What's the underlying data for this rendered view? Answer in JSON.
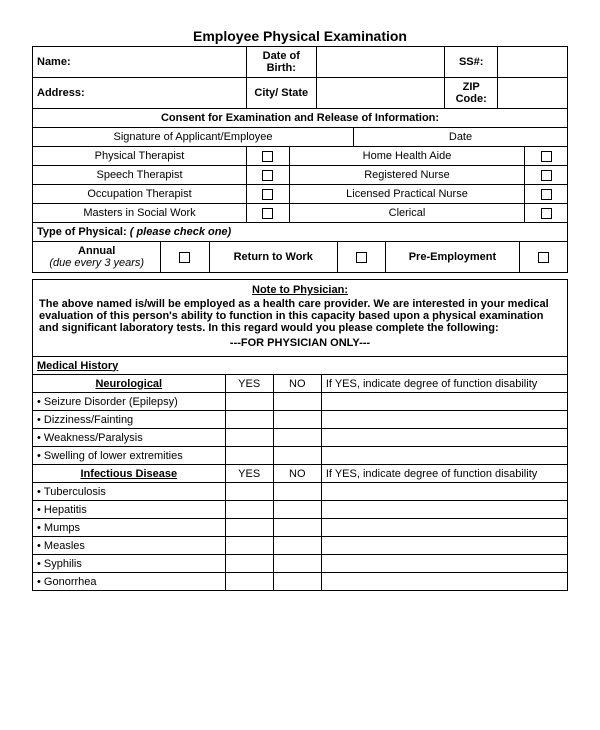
{
  "title": "Employee Physical Examination",
  "info": {
    "name_label": "Name:",
    "dob_label": "Date of Birth:",
    "ss_label": "SS#:",
    "address_label": "Address:",
    "city_state_label": "City/ State",
    "zip_label": "ZIP Code:"
  },
  "consent": {
    "heading": "Consent for Examination and Release of Information:",
    "sig_label": "Signature of Applicant/Employee",
    "date_label": "Date"
  },
  "roles": {
    "left": [
      "Physical Therapist",
      "Speech Therapist",
      "Occupation Therapist",
      "Masters in Social Work"
    ],
    "right": [
      "Home Health Aide",
      "Registered Nurse",
      "Licensed Practical Nurse",
      "Clerical"
    ]
  },
  "physical_type": {
    "heading": "Type of Physical:",
    "heading_note": "( please check one)",
    "options": [
      {
        "label": "Annual",
        "sub": "(due every 3 years)"
      },
      {
        "label": "Return to Work",
        "sub": ""
      },
      {
        "label": "Pre-Employment",
        "sub": ""
      }
    ]
  },
  "note": {
    "title": "Note to Physician:",
    "body": "The above named is/will be employed as a health care provider. We are interested in your medical evaluation of this person's ability to function in this capacity based upon a physical examination and significant laboratory tests. In this regard would you please complete the following:",
    "physician_only": "---FOR PHYSICIAN ONLY---"
  },
  "medical": {
    "history_heading": "Medical History",
    "yes": "YES",
    "no": "NO",
    "if_yes": "If YES, indicate degree of function disability",
    "sections": [
      {
        "heading": "Neurological",
        "items": [
          "Seizure Disorder (Epilepsy)",
          "Dizziness/Fainting",
          "Weakness/Paralysis",
          "Swelling of lower extremities"
        ]
      },
      {
        "heading": "Infectious Disease",
        "items": [
          "Tuberculosis",
          "Hepatitis",
          "Mumps",
          "Measles",
          "Syphilis",
          "Gonorrhea"
        ]
      }
    ]
  },
  "style": {
    "background_color": "#ffffff",
    "text_color": "#000000",
    "border_color": "#000000",
    "title_fontsize": 14,
    "body_fontsize": 11,
    "checkbox_size": 11
  }
}
